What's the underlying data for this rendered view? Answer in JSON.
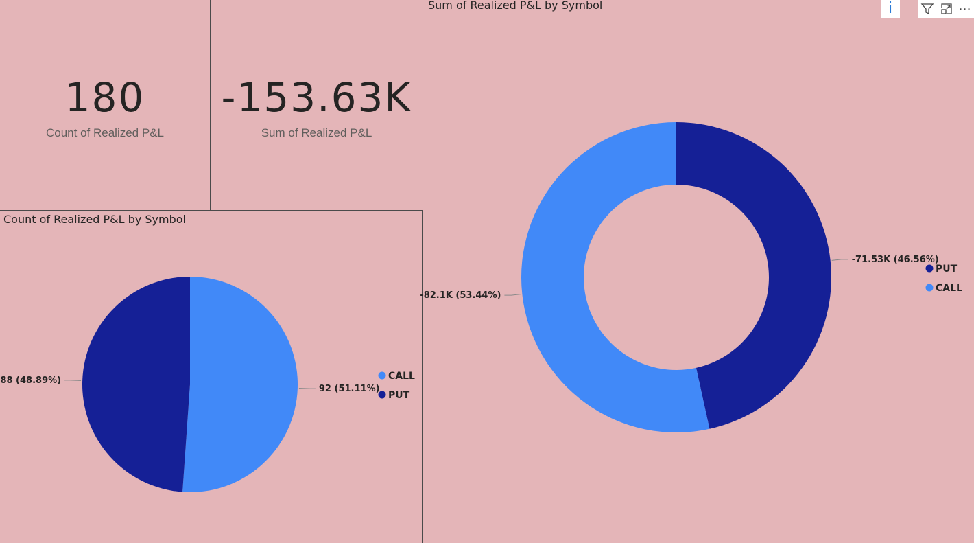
{
  "cards": [
    {
      "value": "180",
      "label": "Count of Realized P&L"
    },
    {
      "value": "-153.63K",
      "label": "Sum of Realized P&L"
    }
  ],
  "colors": {
    "call": "#4189f8",
    "put": "#152096",
    "background": "#e4b5b8"
  },
  "toolbar": {
    "icons": [
      "info-icon",
      "filter-icon",
      "focus-mode-icon",
      "more-options-icon"
    ],
    "info_glyph": "i",
    "more_glyph": "⋯"
  },
  "chart_data": [
    {
      "type": "pie",
      "title": "Count of Realized P&L by Symbol",
      "slices": [
        {
          "name": "CALL",
          "value": 92,
          "percent": 51.11,
          "label": "92 (51.11%)",
          "color": "#4189f8"
        },
        {
          "name": "PUT",
          "value": 88,
          "percent": 48.89,
          "label": "88 (48.89%)",
          "color": "#152096"
        }
      ],
      "legend": [
        "CALL",
        "PUT"
      ],
      "legend_position": "right"
    },
    {
      "type": "donut",
      "title": "Sum of Realized P&L by Symbol",
      "slices": [
        {
          "name": "PUT",
          "value": -71.53,
          "unit": "K",
          "percent": 46.56,
          "label": "-71.53K (46.56%)",
          "color": "#152096"
        },
        {
          "name": "CALL",
          "value": -82.1,
          "unit": "K",
          "percent": 53.44,
          "label": "-82.1K (53.44%)",
          "color": "#4189f8"
        }
      ],
      "legend": [
        "PUT",
        "CALL"
      ],
      "legend_position": "right"
    }
  ]
}
